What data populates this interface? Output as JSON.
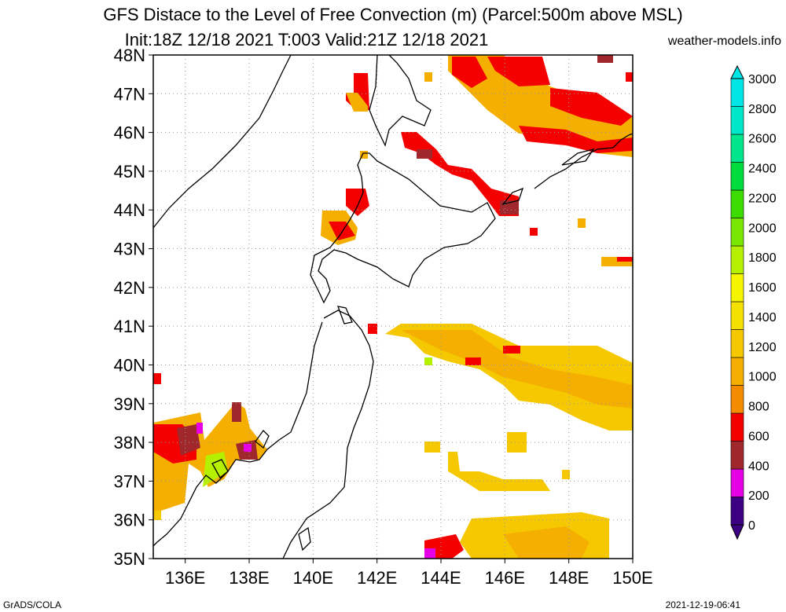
{
  "header": {
    "title_line1": "GFS Distace to the Level of Free Convection (m) (Parcel:500m above MSL)",
    "title_line2": "Init:18Z 12/18 2021 T:003 Valid:21Z 12/18 2021",
    "site": "weather-models.info"
  },
  "footer": {
    "left": "GrADS/COLA",
    "right": "2021-12-19-06:41"
  },
  "map": {
    "lat_labels": [
      "48N",
      "47N",
      "46N",
      "45N",
      "44N",
      "43N",
      "42N",
      "41N",
      "40N",
      "39N",
      "38N",
      "37N",
      "36N",
      "35N"
    ],
    "lon_labels": [
      "136E",
      "138E",
      "140E",
      "142E",
      "144E",
      "146E",
      "148E",
      "150E"
    ],
    "lat_range": [
      35,
      48
    ],
    "lon_range": [
      135,
      150
    ],
    "grid": "dotted"
  },
  "colorbar": {
    "labels": [
      "0",
      "200",
      "400",
      "600",
      "800",
      "1000",
      "1200",
      "1400",
      "1600",
      "1800",
      "2000",
      "2200",
      "2400",
      "2600",
      "2800",
      "3000"
    ],
    "colors": [
      "#3c0082",
      "#e600e6",
      "#a0282d",
      "#f50000",
      "#f58c00",
      "#f5af00",
      "#f5c800",
      "#f5e100",
      "#f5f500",
      "#b4f000",
      "#78e600",
      "#3cdc00",
      "#00dc3c",
      "#00e68c",
      "#00e6c8",
      "#00e6e6"
    ]
  }
}
